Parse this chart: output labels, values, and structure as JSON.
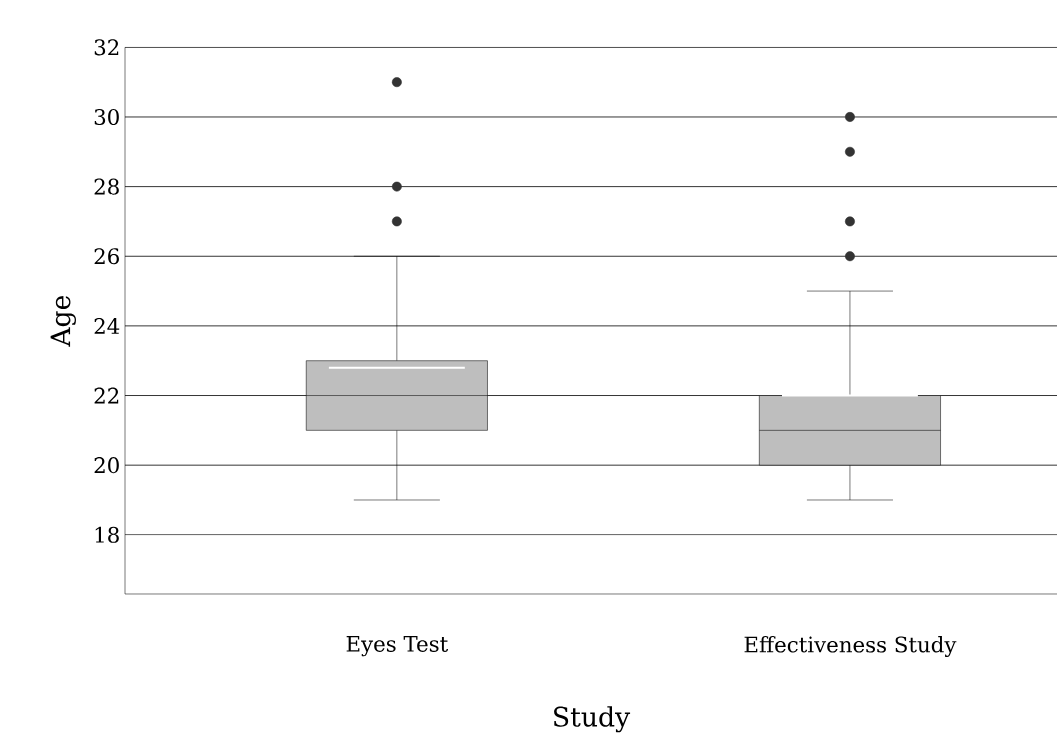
{
  "chart_data": {
    "type": "box",
    "xlabel": "Study",
    "ylabel": "Age",
    "categories": [
      "Eyes Test",
      "Effectiveness Study"
    ],
    "series": [
      {
        "color": "#bebebe",
        "boxes": [
          {
            "low": 19,
            "q1": 21,
            "median": 22,
            "q3": 23,
            "high": 26,
            "mean": 22.8,
            "outliers": [
              27,
              28,
              31
            ]
          },
          {
            "low": 19,
            "q1": 20,
            "median": 21,
            "q3": 22,
            "high": 25,
            "mean": 22,
            "outliers": [
              26,
              27,
              29,
              30
            ]
          }
        ]
      }
    ],
    "ylim": [
      16.3,
      32
    ],
    "yticks": [
      18,
      20,
      22,
      24,
      26,
      28,
      30,
      32
    ],
    "grid": "y"
  }
}
